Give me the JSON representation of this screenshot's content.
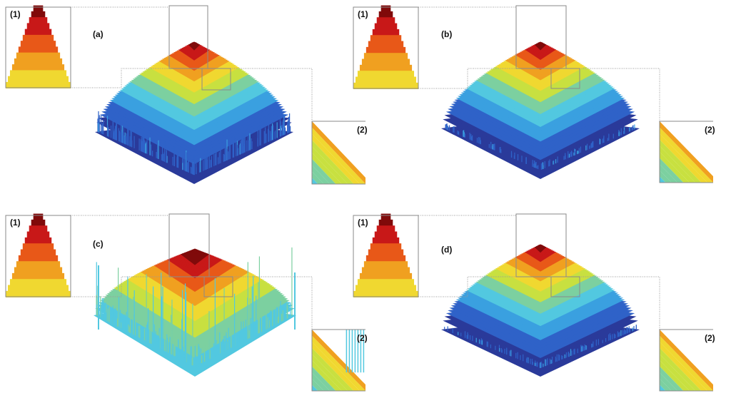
{
  "figure": {
    "panels": [
      {
        "label": "(a)",
        "inset_top_label": "(1)",
        "inset_side_label": "(2)"
      },
      {
        "label": "(b)",
        "inset_top_label": "(1)",
        "inset_side_label": "(2)"
      },
      {
        "label": "(c)",
        "inset_top_label": "(1)",
        "inset_side_label": "(2)"
      },
      {
        "label": "(d)",
        "inset_top_label": "(1)",
        "inset_side_label": "(2)"
      }
    ]
  },
  "colors": {
    "colormap": [
      "#2a3a9a",
      "#2f62c8",
      "#3aa0e0",
      "#52c8e0",
      "#7cd0a0",
      "#c8e040",
      "#f0d830",
      "#f0a020",
      "#e85818",
      "#c81818",
      "#800a0a"
    ],
    "frame": "#8a8a8a",
    "dotted": "#9a9a9a"
  }
}
